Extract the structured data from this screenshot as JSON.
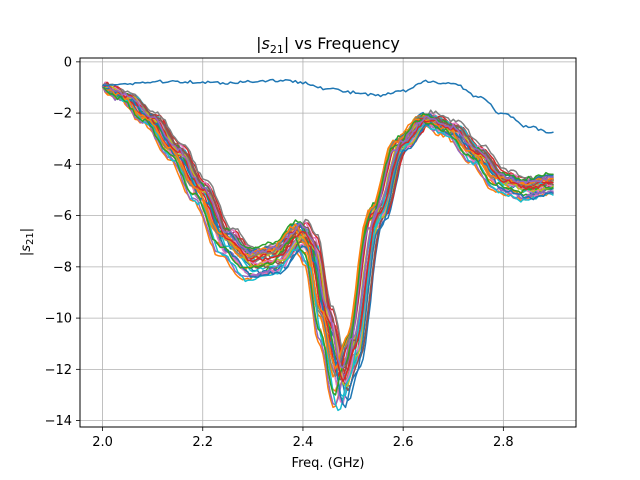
{
  "chart_data": {
    "type": "line",
    "title": "|s21| vs Frequency",
    "title_parts": {
      "pre": "|",
      "var": "s",
      "sub": "21",
      "post": "| vs Frequency"
    },
    "xlabel": "Freq. (GHz)",
    "ylabel": "|s21|",
    "ylabel_parts": {
      "pre": "|",
      "var": "s",
      "sub": "21",
      "post": "|"
    },
    "xlim": [
      1.955,
      2.945
    ],
    "ylim": [
      -14.25,
      0.15
    ],
    "xticks": [
      2.0,
      2.2,
      2.4,
      2.6,
      2.8
    ],
    "xtick_labels": [
      "2.0",
      "2.2",
      "2.4",
      "2.6",
      "2.8"
    ],
    "yticks": [
      0,
      -2,
      -4,
      -6,
      -8,
      -10,
      -12,
      -14
    ],
    "ytick_labels": [
      "0",
      "−2",
      "−4",
      "−6",
      "−8",
      "−10",
      "−12",
      "−14"
    ],
    "grid": true,
    "legend": "none",
    "colors": [
      "#1f77b4",
      "#ff7f0e",
      "#2ca02c",
      "#d62728",
      "#9467bd",
      "#8c564b",
      "#e377c2",
      "#7f7f7f",
      "#bcbd22",
      "#17becf"
    ],
    "reference_series": {
      "x": [
        2.0,
        2.05,
        2.1,
        2.15,
        2.2,
        2.25,
        2.3,
        2.35,
        2.4,
        2.45,
        2.5,
        2.55,
        2.6,
        2.65,
        2.7,
        2.75,
        2.8,
        2.85,
        2.9
      ],
      "values": [
        -0.9,
        -0.85,
        -0.78,
        -0.76,
        -0.8,
        -0.82,
        -0.76,
        -0.72,
        -0.8,
        -1.05,
        -1.2,
        -1.32,
        -1.15,
        -0.75,
        -0.85,
        -1.35,
        -2.05,
        -2.55,
        -2.75
      ]
    },
    "family_template": {
      "x": [
        2.0,
        2.05,
        2.1,
        2.15,
        2.2,
        2.25,
        2.3,
        2.35,
        2.4,
        2.42,
        2.45,
        2.48,
        2.5,
        2.55,
        2.6,
        2.65,
        2.7,
        2.75,
        2.8,
        2.85,
        2.9
      ],
      "values": [
        -0.95,
        -1.4,
        -2.3,
        -3.6,
        -5.2,
        -7.2,
        -8.1,
        -7.9,
        -6.9,
        -7.5,
        -10.5,
        -13.0,
        -11.8,
        -6.2,
        -3.3,
        -2.3,
        -2.7,
        -3.7,
        -4.8,
        -5.1,
        -4.9
      ]
    },
    "family_count": 34,
    "shift_range_ghz": [
      -0.018,
      0.012
    ],
    "scale_range": [
      0.9,
      1.05
    ]
  }
}
